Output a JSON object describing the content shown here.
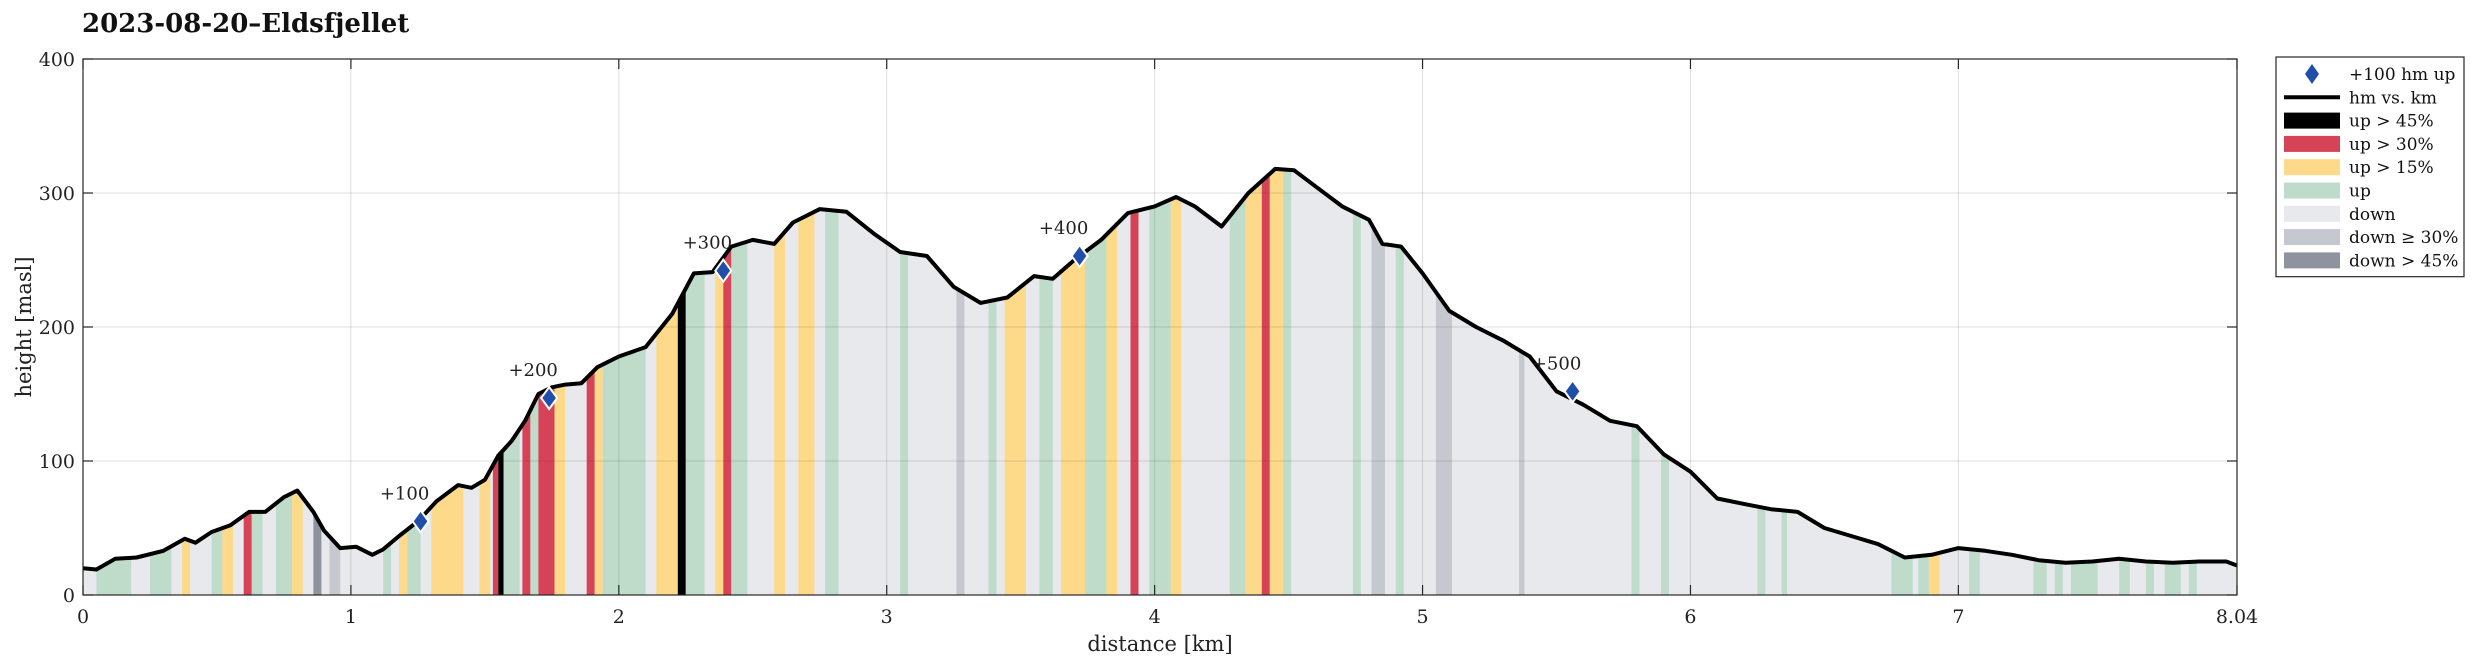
{
  "chart_data": {
    "type": "area",
    "title": "2023-08-20–Eldsfjellet",
    "xlabel": "distance [km]",
    "ylabel": "height [masl]",
    "xlim": [
      0,
      8.04
    ],
    "ylim": [
      0,
      400
    ],
    "x_ticks": [
      "0",
      "1",
      "2",
      "3",
      "4",
      "5",
      "6",
      "7",
      "8.04"
    ],
    "y_ticks": [
      "0",
      "100",
      "200",
      "300",
      "400"
    ],
    "grid": true,
    "legend_position": "outside-right",
    "legend": [
      {
        "key": "marker",
        "label": "+100 hm up",
        "color": "#1f4fa8"
      },
      {
        "key": "line",
        "label": "hm vs. km",
        "color": "#000000"
      },
      {
        "key": "up45",
        "label": "up > 45%",
        "color": "#000000"
      },
      {
        "key": "up30",
        "label": "up > 30%",
        "color": "#d64256"
      },
      {
        "key": "up15",
        "label": "up > 15%",
        "color": "#fdd98a"
      },
      {
        "key": "up",
        "label": "up",
        "color": "#bfdccb"
      },
      {
        "key": "down",
        "label": "down",
        "color": "#e8e9ec"
      },
      {
        "key": "down30",
        "label": "down ≥ 30%",
        "color": "#c6c8cf"
      },
      {
        "key": "down45",
        "label": "down > 45%",
        "color": "#8e939e"
      }
    ],
    "profile": {
      "x": [
        0,
        0.05,
        0.12,
        0.2,
        0.3,
        0.38,
        0.42,
        0.48,
        0.55,
        0.62,
        0.68,
        0.75,
        0.8,
        0.86,
        0.9,
        0.96,
        1.02,
        1.08,
        1.12,
        1.18,
        1.25,
        1.32,
        1.4,
        1.45,
        1.5,
        1.55,
        1.6,
        1.65,
        1.7,
        1.75,
        1.8,
        1.86,
        1.92,
        2.0,
        2.1,
        2.2,
        2.28,
        2.35,
        2.42,
        2.5,
        2.58,
        2.65,
        2.75,
        2.85,
        2.95,
        3.05,
        3.15,
        3.25,
        3.35,
        3.45,
        3.55,
        3.62,
        3.7,
        3.8,
        3.9,
        4.0,
        4.08,
        4.15,
        4.25,
        4.35,
        4.45,
        4.52,
        4.6,
        4.7,
        4.8,
        4.85,
        4.92,
        5.0,
        5.1,
        5.2,
        5.3,
        5.4,
        5.5,
        5.6,
        5.7,
        5.8,
        5.9,
        6.0,
        6.1,
        6.2,
        6.3,
        6.4,
        6.5,
        6.6,
        6.7,
        6.8,
        6.9,
        7.0,
        7.1,
        7.2,
        7.3,
        7.4,
        7.5,
        7.6,
        7.7,
        7.8,
        7.9,
        8.0,
        8.04
      ],
      "y": [
        20,
        19,
        27,
        28,
        33,
        42,
        39,
        47,
        52,
        62,
        62,
        73,
        78,
        62,
        48,
        35,
        36,
        30,
        34,
        44,
        55,
        70,
        82,
        80,
        86,
        104,
        115,
        130,
        150,
        155,
        157,
        158,
        170,
        178,
        185,
        210,
        240,
        241,
        260,
        265,
        262,
        278,
        288,
        286,
        270,
        256,
        253,
        230,
        218,
        222,
        238,
        236,
        250,
        265,
        285,
        290,
        297,
        290,
        275,
        300,
        318,
        317,
        305,
        290,
        280,
        262,
        260,
        240,
        212,
        200,
        190,
        178,
        152,
        142,
        130,
        126,
        105,
        92,
        72,
        68,
        64,
        62,
        50,
        44,
        38,
        28,
        30,
        35,
        33,
        30,
        26,
        24,
        25,
        27,
        25,
        24,
        25,
        25,
        22
      ]
    },
    "markers": [
      {
        "x": 1.26,
        "y": 55,
        "label": "+100"
      },
      {
        "x": 1.74,
        "y": 147,
        "label": "+200"
      },
      {
        "x": 2.39,
        "y": 242,
        "label": "+300"
      },
      {
        "x": 3.72,
        "y": 253,
        "label": "+400"
      },
      {
        "x": 5.56,
        "y": 152,
        "label": "+500"
      }
    ],
    "gradient_bands": [
      {
        "x0": 0.05,
        "x1": 0.18,
        "cat": "up"
      },
      {
        "x0": 0.25,
        "x1": 0.33,
        "cat": "up"
      },
      {
        "x0": 0.37,
        "x1": 0.4,
        "cat": "up15"
      },
      {
        "x0": 0.48,
        "x1": 0.52,
        "cat": "up"
      },
      {
        "x0": 0.52,
        "x1": 0.56,
        "cat": "up15"
      },
      {
        "x0": 0.6,
        "x1": 0.63,
        "cat": "up30"
      },
      {
        "x0": 0.63,
        "x1": 0.67,
        "cat": "up"
      },
      {
        "x0": 0.72,
        "x1": 0.78,
        "cat": "up"
      },
      {
        "x0": 0.78,
        "x1": 0.82,
        "cat": "up15"
      },
      {
        "x0": 0.86,
        "x1": 0.89,
        "cat": "down45"
      },
      {
        "x0": 0.92,
        "x1": 0.96,
        "cat": "down30"
      },
      {
        "x0": 1.12,
        "x1": 1.15,
        "cat": "up"
      },
      {
        "x0": 1.18,
        "x1": 1.21,
        "cat": "up15"
      },
      {
        "x0": 1.21,
        "x1": 1.26,
        "cat": "up"
      },
      {
        "x0": 1.3,
        "x1": 1.42,
        "cat": "up15"
      },
      {
        "x0": 1.48,
        "x1": 1.52,
        "cat": "up15"
      },
      {
        "x0": 1.53,
        "x1": 1.55,
        "cat": "up30"
      },
      {
        "x0": 1.55,
        "x1": 1.57,
        "cat": "up45"
      },
      {
        "x0": 1.57,
        "x1": 1.63,
        "cat": "up"
      },
      {
        "x0": 1.64,
        "x1": 1.67,
        "cat": "up30"
      },
      {
        "x0": 1.67,
        "x1": 1.7,
        "cat": "up"
      },
      {
        "x0": 1.7,
        "x1": 1.76,
        "cat": "up30"
      },
      {
        "x0": 1.76,
        "x1": 1.8,
        "cat": "up15"
      },
      {
        "x0": 1.88,
        "x1": 1.91,
        "cat": "up30"
      },
      {
        "x0": 1.91,
        "x1": 1.94,
        "cat": "up15"
      },
      {
        "x0": 1.94,
        "x1": 2.1,
        "cat": "up"
      },
      {
        "x0": 2.14,
        "x1": 2.22,
        "cat": "up15"
      },
      {
        "x0": 2.22,
        "x1": 2.25,
        "cat": "up45"
      },
      {
        "x0": 2.25,
        "x1": 2.32,
        "cat": "up"
      },
      {
        "x0": 2.36,
        "x1": 2.39,
        "cat": "up15"
      },
      {
        "x0": 2.39,
        "x1": 2.42,
        "cat": "up30"
      },
      {
        "x0": 2.42,
        "x1": 2.48,
        "cat": "up"
      },
      {
        "x0": 2.58,
        "x1": 2.62,
        "cat": "up15"
      },
      {
        "x0": 2.67,
        "x1": 2.73,
        "cat": "up15"
      },
      {
        "x0": 2.77,
        "x1": 2.82,
        "cat": "up"
      },
      {
        "x0": 3.05,
        "x1": 3.08,
        "cat": "up"
      },
      {
        "x0": 3.26,
        "x1": 3.29,
        "cat": "down30"
      },
      {
        "x0": 3.38,
        "x1": 3.41,
        "cat": "up"
      },
      {
        "x0": 3.44,
        "x1": 3.52,
        "cat": "up15"
      },
      {
        "x0": 3.57,
        "x1": 3.62,
        "cat": "up"
      },
      {
        "x0": 3.65,
        "x1": 3.74,
        "cat": "up15"
      },
      {
        "x0": 3.74,
        "x1": 3.82,
        "cat": "up"
      },
      {
        "x0": 3.82,
        "x1": 3.86,
        "cat": "up15"
      },
      {
        "x0": 3.91,
        "x1": 3.94,
        "cat": "up30"
      },
      {
        "x0": 3.98,
        "x1": 4.06,
        "cat": "up"
      },
      {
        "x0": 4.06,
        "x1": 4.1,
        "cat": "up15"
      },
      {
        "x0": 4.28,
        "x1": 4.34,
        "cat": "up"
      },
      {
        "x0": 4.34,
        "x1": 4.4,
        "cat": "up15"
      },
      {
        "x0": 4.4,
        "x1": 4.43,
        "cat": "up30"
      },
      {
        "x0": 4.43,
        "x1": 4.48,
        "cat": "up15"
      },
      {
        "x0": 4.48,
        "x1": 4.51,
        "cat": "up"
      },
      {
        "x0": 4.74,
        "x1": 4.77,
        "cat": "up"
      },
      {
        "x0": 4.81,
        "x1": 4.86,
        "cat": "down30"
      },
      {
        "x0": 4.9,
        "x1": 4.93,
        "cat": "up"
      },
      {
        "x0": 5.05,
        "x1": 5.11,
        "cat": "down30"
      },
      {
        "x0": 5.36,
        "x1": 5.38,
        "cat": "down30"
      },
      {
        "x0": 5.78,
        "x1": 5.81,
        "cat": "up"
      },
      {
        "x0": 5.89,
        "x1": 5.92,
        "cat": "up"
      },
      {
        "x0": 6.25,
        "x1": 6.28,
        "cat": "up"
      },
      {
        "x0": 6.34,
        "x1": 6.36,
        "cat": "up"
      },
      {
        "x0": 6.75,
        "x1": 6.83,
        "cat": "up"
      },
      {
        "x0": 6.85,
        "x1": 6.89,
        "cat": "up"
      },
      {
        "x0": 6.89,
        "x1": 6.93,
        "cat": "up15"
      },
      {
        "x0": 7.04,
        "x1": 7.08,
        "cat": "up"
      },
      {
        "x0": 7.28,
        "x1": 7.33,
        "cat": "up"
      },
      {
        "x0": 7.36,
        "x1": 7.39,
        "cat": "up"
      },
      {
        "x0": 7.42,
        "x1": 7.52,
        "cat": "up"
      },
      {
        "x0": 7.6,
        "x1": 7.64,
        "cat": "up"
      },
      {
        "x0": 7.7,
        "x1": 7.73,
        "cat": "up"
      },
      {
        "x0": 7.77,
        "x1": 7.83,
        "cat": "up"
      },
      {
        "x0": 7.86,
        "x1": 7.89,
        "cat": "up"
      }
    ]
  }
}
